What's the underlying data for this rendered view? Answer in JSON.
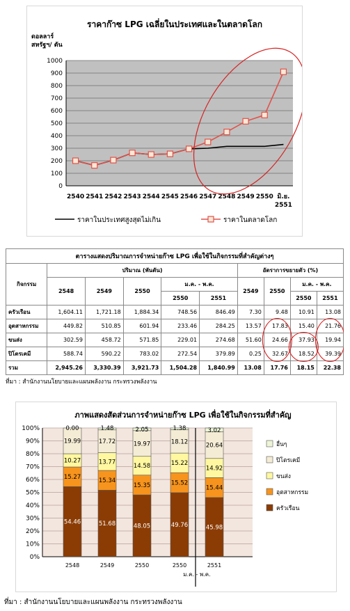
{
  "chart_data": [
    {
      "type": "line",
      "title": "ราคาก๊าซ LPG เฉลี่ยในประเทศและในตลาดโลก",
      "ylabel": "ดอลลาร์สหรัฐฯ/ตัน",
      "ylabel_lines": [
        "ดอลลาร์",
        "สหรัฐฯ/ ตัน"
      ],
      "xlabel": "",
      "x": [
        "2540",
        "2541",
        "2542",
        "2543",
        "2544",
        "2545",
        "2546",
        "2547",
        "2548",
        "2549",
        "2550",
        "มิ.ย. 2551"
      ],
      "x_lines": [
        [
          "2540"
        ],
        [
          "2541"
        ],
        [
          "2542"
        ],
        [
          "2543"
        ],
        [
          "2544"
        ],
        [
          "2545"
        ],
        [
          "2546"
        ],
        [
          "2547"
        ],
        [
          "2548"
        ],
        [
          "2549"
        ],
        [
          "2550"
        ],
        [
          "มิ.ย.",
          "2551"
        ]
      ],
      "yticks": [
        0,
        100,
        200,
        300,
        400,
        500,
        600,
        700,
        800,
        900,
        1000
      ],
      "ylim": [
        0,
        1000
      ],
      "grid": true,
      "legend_position": "bottom",
      "series": [
        {
          "name": "ราคาในประเทศสูงสุดไม่เกิน",
          "color": "#000000",
          "marker": "none",
          "values": [
            null,
            null,
            null,
            null,
            null,
            null,
            null,
            null,
            315,
            315,
            315,
            330
          ]
        },
        {
          "name": "ราคาในตลาดโลก",
          "color": "#e0524a",
          "marker": "square",
          "values": [
            200,
            163,
            205,
            263,
            250,
            255,
            295,
            350,
            430,
            515,
            565,
            910
          ]
        }
      ],
      "domestic_overlap": [
        200,
        163,
        205,
        263,
        250,
        255,
        295,
        300
      ]
    },
    {
      "type": "table",
      "title": "ตารางแสดงปริมาณการจำหน่ายก๊าซ LPG เพื่อใช้ในกิจกรรมที่สำคัญต่างๆ",
      "header": {
        "activity": "กิจกรรม",
        "quantity": "ปริมาณ (พันตัน)",
        "growth": "อัตราการขยายตัว (%)",
        "period": "ม.ค. - พ.ค.",
        "years_q": [
          "2548",
          "2549",
          "2550"
        ],
        "period_years_q": [
          "2550",
          "2551"
        ],
        "years_g": [
          "2549",
          "2550"
        ],
        "period_years_g": [
          "2550",
          "2551"
        ]
      },
      "rows": [
        {
          "name": "ครัวเรือน",
          "q": [
            "1,604.11",
            "1,721.18",
            "1,884.34",
            "748.56",
            "846.49"
          ],
          "g": [
            "7.30",
            "9.48",
            "10.91",
            "13.08"
          ]
        },
        {
          "name": "อุตสาหกรรม",
          "q": [
            "449.82",
            "510.85",
            "601.94",
            "233.46",
            "284.25"
          ],
          "g": [
            "13.57",
            "17.83",
            "15.40",
            "21.76"
          ]
        },
        {
          "name": "ขนส่ง",
          "q": [
            "302.59",
            "458.72",
            "571.85",
            "229.01",
            "274.68"
          ],
          "g": [
            "51.60",
            "24.66",
            "37.93",
            "19.94"
          ]
        },
        {
          "name": "ปิโตรเคมี",
          "q": [
            "588.74",
            "590.22",
            "783.02",
            "272.54",
            "379.89"
          ],
          "g": [
            "0.25",
            "32.67",
            "18.52",
            "39.39"
          ]
        }
      ],
      "total": {
        "name": "รวม",
        "q": [
          "2,945.26",
          "3,330.39",
          "3,921.73",
          "1,504.28",
          "1,840.99"
        ],
        "g": [
          "13.08",
          "17.76",
          "18.15",
          "22.38"
        ]
      },
      "source": "ที่มา : สำนักงานนโยบายและแผนพลังงาน กระทรวงพลังงาน"
    },
    {
      "type": "bar",
      "stacked": true,
      "title": "ภาพแสดงสัดส่วนการจำหน่ายก๊าซ LPG เพื่อใช้ในกิจกรรมที่สำคัญ",
      "categories": [
        "2548",
        "2549",
        "2550",
        "2550",
        "2551"
      ],
      "period_label": "ม.ค. - พ.ค.",
      "yticks": [
        "0%",
        "10%",
        "20%",
        "30%",
        "40%",
        "50%",
        "60%",
        "70%",
        "80%",
        "90%",
        "100%"
      ],
      "ylim": [
        0,
        100
      ],
      "legend_position": "right",
      "series": [
        {
          "name": "ครัวเรือน",
          "color": "#8b3c04",
          "values": [
            54.46,
            51.68,
            48.05,
            49.76,
            45.98
          ]
        },
        {
          "name": "อุตสาหกรรม",
          "color": "#f7941d",
          "values": [
            15.27,
            15.34,
            15.35,
            15.52,
            15.44
          ]
        },
        {
          "name": "ขนส่ง",
          "color": "#fff8a0",
          "values": [
            10.27,
            13.77,
            14.58,
            15.22,
            14.92
          ]
        },
        {
          "name": "ปิโตรเคมี",
          "color": "#f5ecd5",
          "values": [
            19.99,
            17.72,
            19.97,
            18.12,
            20.64
          ]
        },
        {
          "name": "อื่นๆ",
          "color": "#eef5d6",
          "values": [
            0.0,
            1.48,
            2.05,
            1.38,
            3.02
          ]
        }
      ]
    }
  ],
  "source2": "ที่มา : สำนักงานนโยบายและแผนพลังงาน กระทรวงพลังงาน"
}
